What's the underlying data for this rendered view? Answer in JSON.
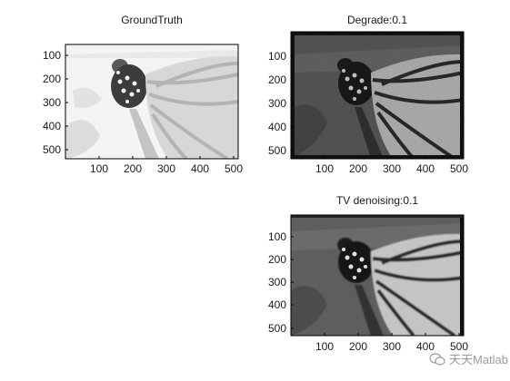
{
  "figure": {
    "watermark": "天天Matlab"
  },
  "chart_data": [
    {
      "type": "heatmap",
      "title": "GroundTruth",
      "content": "grayscale image of a monarch butterfly on flowers",
      "x_ticks": [
        "100",
        "200",
        "300",
        "400",
        "500"
      ],
      "y_ticks": [
        "100",
        "200",
        "300",
        "400",
        "500"
      ],
      "xlim": [
        0,
        512
      ],
      "ylim": [
        0,
        512
      ],
      "tone": "light"
    },
    {
      "type": "heatmap",
      "title": "Degrade:0.1",
      "content": "noisy grayscale image of the butterfly",
      "x_ticks": [
        "100",
        "200",
        "300",
        "400",
        "500"
      ],
      "y_ticks": [
        "100",
        "200",
        "300",
        "400",
        "500"
      ],
      "xlim": [
        0,
        512
      ],
      "ylim": [
        0,
        512
      ],
      "tone": "noisy"
    },
    {
      "type": "heatmap",
      "title": "TV denoising:0.1",
      "content": "denoised grayscale image of the butterfly",
      "x_ticks": [
        "100",
        "200",
        "300",
        "400",
        "500"
      ],
      "y_ticks": [
        "100",
        "200",
        "300",
        "400",
        "500"
      ],
      "xlim": [
        0,
        512
      ],
      "ylim": [
        0,
        512
      ],
      "tone": "smooth"
    }
  ]
}
